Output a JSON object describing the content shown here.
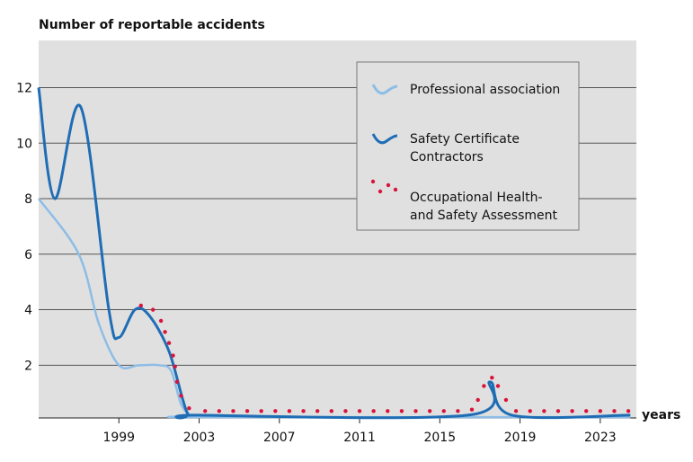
{
  "chart_data": {
    "type": "line",
    "y_label": "Number of reportable accidents",
    "x_label": "years",
    "xlim": [
      1995,
      2024.8
    ],
    "ylim": [
      0.1,
      13.7
    ],
    "xticks": [
      1999,
      2003,
      2007,
      2011,
      2015,
      2019,
      2023
    ],
    "yticks": [
      2,
      4,
      6,
      8,
      10,
      12
    ],
    "grid": true,
    "legend": "upper right",
    "series": [
      {
        "name": "Professional association",
        "color": "#8dbde6",
        "marker": "line",
        "x": [
          1995,
          1997,
          1998,
          1999,
          2000,
          2001,
          2001.6,
          2002.1,
          2002.6,
          2003.2,
          2024.5
        ],
        "values": [
          8,
          6,
          3.5,
          2,
          2,
          2,
          1.8,
          0.6,
          0.2,
          0.13,
          0.13
        ]
      },
      {
        "name": "Safety Certificate Contractors",
        "color": "#1f6db5",
        "marker": "line",
        "x": [
          1995,
          1995.8,
          1997.1,
          1998.5,
          1999,
          1999.8,
          2000.5,
          2001.5,
          2002.4,
          2003,
          2016.4,
          2017.5,
          2018.6,
          2024.5
        ],
        "values": [
          12,
          8,
          11.3,
          4,
          3,
          4,
          3.8,
          2.5,
          0.3,
          0.2,
          0.2,
          1.4,
          0.2,
          0.2
        ]
      },
      {
        "name": "Occupational Health- and Safety Assessment",
        "color": "#d8143a",
        "marker": "dots",
        "x": [
          2000.1,
          2000.7,
          2001.1,
          2001.3,
          2001.5,
          2001.7,
          2001.8,
          2001.9,
          2002.1,
          2002.5,
          2003.3,
          2004.0,
          2004.7,
          2005.4,
          2006.1,
          2006.8,
          2007.5,
          2008.2,
          2008.9,
          2009.6,
          2010.3,
          2011.0,
          2011.7,
          2012.4,
          2013.1,
          2013.8,
          2014.5,
          2015.2,
          2015.9,
          2016.6,
          2016.9,
          2017.2,
          2017.6,
          2017.9,
          2018.3,
          2018.8,
          2019.5,
          2020.2,
          2020.9,
          2021.6,
          2022.3,
          2023.0,
          2023.7,
          2024.4
        ],
        "values": [
          4.15,
          4.0,
          3.6,
          3.2,
          2.8,
          2.35,
          1.95,
          1.4,
          0.9,
          0.45,
          0.35,
          0.35,
          0.35,
          0.35,
          0.35,
          0.35,
          0.35,
          0.35,
          0.35,
          0.35,
          0.35,
          0.35,
          0.35,
          0.35,
          0.35,
          0.35,
          0.35,
          0.35,
          0.35,
          0.4,
          0.75,
          1.25,
          1.55,
          1.25,
          0.75,
          0.35,
          0.35,
          0.35,
          0.35,
          0.35,
          0.35,
          0.35,
          0.35,
          0.35
        ]
      }
    ]
  }
}
